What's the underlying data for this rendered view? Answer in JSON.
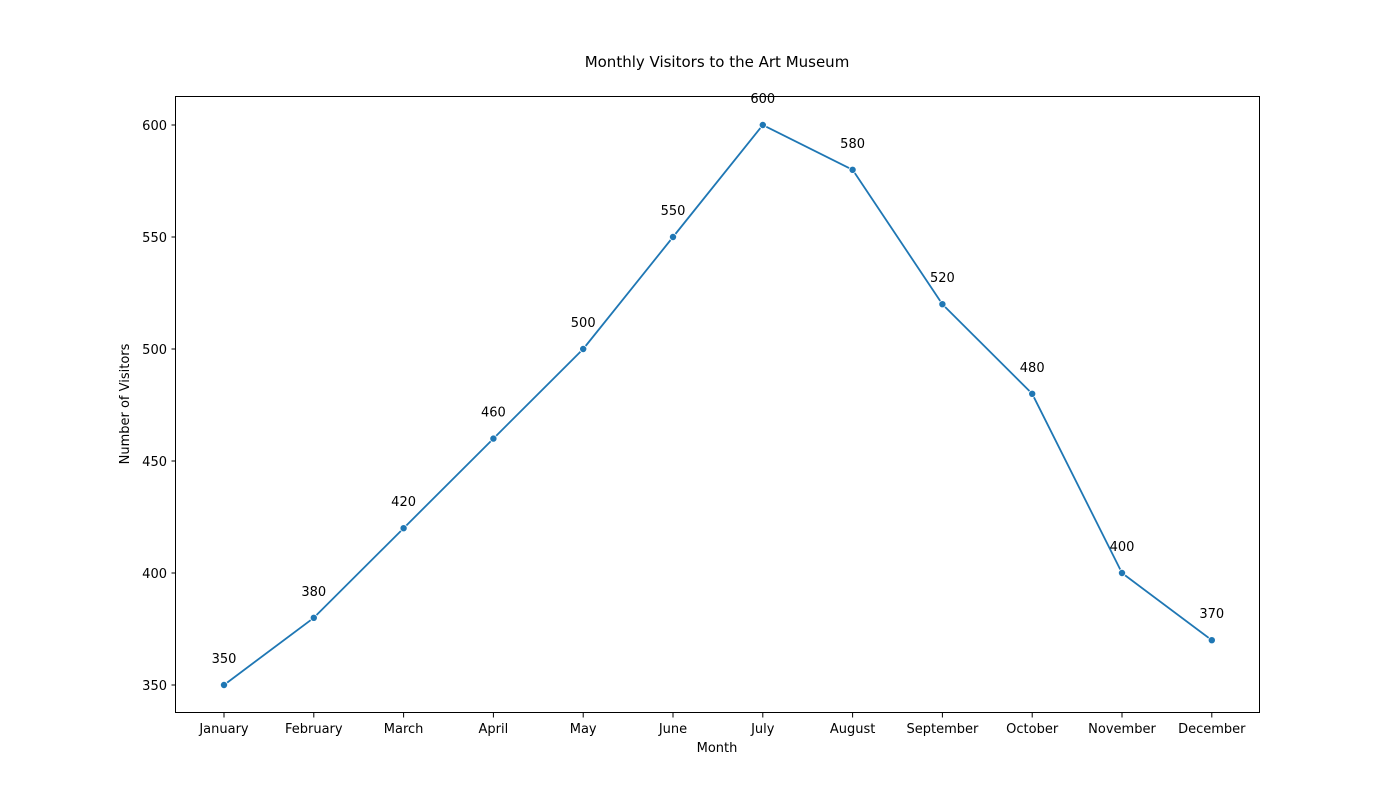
{
  "chart_data": {
    "type": "line",
    "title": "Monthly Visitors to the Art Museum",
    "xlabel": "Month",
    "ylabel": "Number of Visitors",
    "categories": [
      "January",
      "February",
      "March",
      "April",
      "May",
      "June",
      "July",
      "August",
      "September",
      "October",
      "November",
      "December"
    ],
    "series": [
      {
        "values": [
          350,
          380,
          420,
          460,
          500,
          550,
          600,
          580,
          520,
          480,
          400,
          370
        ],
        "color": "#1f77b4",
        "marker": "circle"
      }
    ],
    "data_labels": [
      "350",
      "380",
      "420",
      "460",
      "500",
      "550",
      "600",
      "580",
      "520",
      "480",
      "400",
      "370"
    ],
    "yticks": [
      350,
      400,
      450,
      500,
      550,
      600
    ],
    "ylim": [
      337.5,
      612.5
    ],
    "grid": false,
    "legend": "none"
  }
}
